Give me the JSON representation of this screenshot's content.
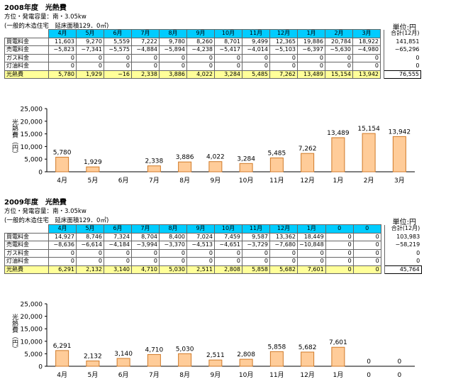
{
  "colors": {
    "header_bg": "#00ccff",
    "total_bg": "#ffff99",
    "bar_fill": "#ffcc99",
    "bar_stroke": "#d07a28"
  },
  "sections": [
    {
      "title": "2008年度　光熱費",
      "subtitle": "方位・発電容量：南・3.05kw",
      "subtitle2": "(一般的木造住宅　延床面積129．0㎡)",
      "unit": "単位:円",
      "table": {
        "columns": [
          "4月",
          "5月",
          "6月",
          "7月",
          "8月",
          "9月",
          "10月",
          "11月",
          "12月",
          "1月",
          "2月",
          "3月"
        ],
        "sum_label": "合計(12月)",
        "rows": [
          {
            "label": "買電料金",
            "values": [
              "11,603",
              "9,270",
              "5,559",
              "7,222",
              "9,780",
              "8,260",
              "8,701",
              "9,499",
              "12,365",
              "19,886",
              "20,784",
              "18,922"
            ],
            "sum": "141,851"
          },
          {
            "label": "売電料金",
            "values": [
              "−5,823",
              "−7,341",
              "−5,575",
              "−4,884",
              "−5,894",
              "−4,238",
              "−5,417",
              "−4,014",
              "−5,103",
              "−6,397",
              "−5,630",
              "−4,980"
            ],
            "sum": "−65,296"
          },
          {
            "label": "ガス料金",
            "values": [
              "0",
              "0",
              "0",
              "0",
              "0",
              "0",
              "0",
              "0",
              "0",
              "0",
              "0",
              "0"
            ],
            "sum": "0"
          },
          {
            "label": "灯油料金",
            "values": [
              "0",
              "0",
              "0",
              "0",
              "0",
              "0",
              "0",
              "0",
              "0",
              "0",
              "0",
              "0"
            ],
            "sum": "0"
          }
        ],
        "total": {
          "label": "光熱費",
          "values": [
            "5,780",
            "1,929",
            "−16",
            "2,338",
            "3,886",
            "4,022",
            "3,284",
            "5,485",
            "7,262",
            "13,489",
            "15,154",
            "13,942"
          ],
          "sum": "76,555"
        }
      },
      "chart_data": {
        "type": "bar",
        "categories": [
          "4月",
          "5月",
          "6月",
          "7月",
          "8月",
          "9月",
          "10月",
          "11月",
          "12月",
          "1月",
          "2月",
          "3月"
        ],
        "values": [
          5780,
          1929,
          -16,
          2338,
          3886,
          4022,
          3284,
          5485,
          7262,
          13489,
          15154,
          13942
        ],
        "labels": [
          "5,780",
          "1,929",
          "",
          "2,338",
          "3,886",
          "4,022",
          "3,284",
          "5,485",
          "7,262",
          "13,489",
          "15,154",
          "13,942"
        ],
        "ylabel": "光熱費（円）",
        "ylim": [
          0,
          25000
        ],
        "yticks": [
          "0",
          "5,000",
          "10,000",
          "15,000",
          "20,000",
          "25,000"
        ],
        "grid": false
      }
    },
    {
      "title": "2009年度　光熱費",
      "subtitle": "方位・発電容量：南・3.05kw",
      "subtitle2": "(一般的木造住宅　延床面積129．0㎡)",
      "unit": "単位:円",
      "table": {
        "columns": [
          "4月",
          "5月",
          "6月",
          "7月",
          "8月",
          "9月",
          "10月",
          "11月",
          "12月",
          "1月",
          "0",
          "0"
        ],
        "sum_label": "合計(12月)",
        "rows": [
          {
            "label": "買電料金",
            "values": [
              "14,927",
              "8,746",
              "7,324",
              "8,704",
              "8,400",
              "7,024",
              "7,459",
              "9,587",
              "13,362",
              "18,449",
              "0",
              "0"
            ],
            "sum": "103,983"
          },
          {
            "label": "売電料金",
            "values": [
              "−8,636",
              "−6,614",
              "−4,184",
              "−3,994",
              "−3,370",
              "−4,513",
              "−4,651",
              "−3,729",
              "−7,680",
              "−10,848",
              "0",
              "0"
            ],
            "sum": "−58,219"
          },
          {
            "label": "ガス料金",
            "values": [
              "0",
              "0",
              "0",
              "0",
              "0",
              "0",
              "0",
              "0",
              "0",
              "0",
              "0",
              "0"
            ],
            "sum": "0"
          },
          {
            "label": "灯油料金",
            "values": [
              "0",
              "0",
              "0",
              "0",
              "0",
              "0",
              "0",
              "0",
              "0",
              "0",
              "0",
              "0"
            ],
            "sum": "0"
          }
        ],
        "total": {
          "label": "光熱費",
          "values": [
            "6,291",
            "2,132",
            "3,140",
            "4,710",
            "5,030",
            "2,511",
            "2,808",
            "5,858",
            "5,682",
            "7,601",
            "0",
            "0"
          ],
          "sum": "45,764"
        }
      },
      "chart_data": {
        "type": "bar",
        "categories": [
          "4月",
          "5月",
          "6月",
          "7月",
          "8月",
          "9月",
          "10月",
          "11月",
          "12月",
          "1月",
          "0",
          "0"
        ],
        "values": [
          6291,
          2132,
          3140,
          4710,
          5030,
          2511,
          2808,
          5858,
          5682,
          7601,
          0,
          0
        ],
        "labels": [
          "6,291",
          "2,132",
          "3,140",
          "4,710",
          "5,030",
          "2,511",
          "2,808",
          "5,858",
          "5,682",
          "7,601",
          "0",
          "0"
        ],
        "ylabel": "光熱費（円）",
        "ylim": [
          0,
          25000
        ],
        "yticks": [
          "0",
          "5,000",
          "10,000",
          "15,000",
          "20,000",
          "25,000"
        ],
        "grid": false
      }
    }
  ]
}
